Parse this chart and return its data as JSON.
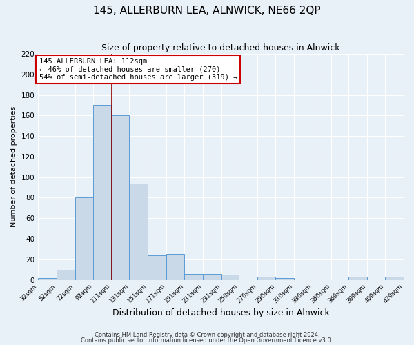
{
  "title": "145, ALLERBURN LEA, ALNWICK, NE66 2QP",
  "subtitle": "Size of property relative to detached houses in Alnwick",
  "xlabel": "Distribution of detached houses by size in Alnwick",
  "ylabel": "Number of detached properties",
  "bar_edges": [
    32,
    52,
    72,
    92,
    111,
    131,
    151,
    171,
    191,
    211,
    231,
    250,
    270,
    290,
    310,
    330,
    350,
    369,
    389,
    409,
    429
  ],
  "bar_heights": [
    2,
    10,
    80,
    170,
    160,
    94,
    24,
    25,
    6,
    6,
    5,
    0,
    3,
    2,
    0,
    0,
    0,
    3,
    0,
    3
  ],
  "tick_labels": [
    "32sqm",
    "52sqm",
    "72sqm",
    "92sqm",
    "111sqm",
    "131sqm",
    "151sqm",
    "171sqm",
    "191sqm",
    "211sqm",
    "231sqm",
    "250sqm",
    "270sqm",
    "290sqm",
    "310sqm",
    "330sqm",
    "350sqm",
    "369sqm",
    "389sqm",
    "409sqm",
    "429sqm"
  ],
  "bar_color": "#c9d9e8",
  "bar_edge_color": "#5b9bd5",
  "vline_x": 112,
  "vline_color": "#8b0000",
  "annotation_title": "145 ALLERBURN LEA: 112sqm",
  "annotation_line1": "← 46% of detached houses are smaller (270)",
  "annotation_line2": "54% of semi-detached houses are larger (319) →",
  "annotation_box_color": "#ffffff",
  "annotation_box_edgecolor": "#cc0000",
  "ylim": [
    0,
    220
  ],
  "yticks": [
    0,
    20,
    40,
    60,
    80,
    100,
    120,
    140,
    160,
    180,
    200,
    220
  ],
  "bg_color": "#e8f0f8",
  "footer1": "Contains HM Land Registry data © Crown copyright and database right 2024.",
  "footer2": "Contains public sector information licensed under the Open Government Licence v3.0."
}
